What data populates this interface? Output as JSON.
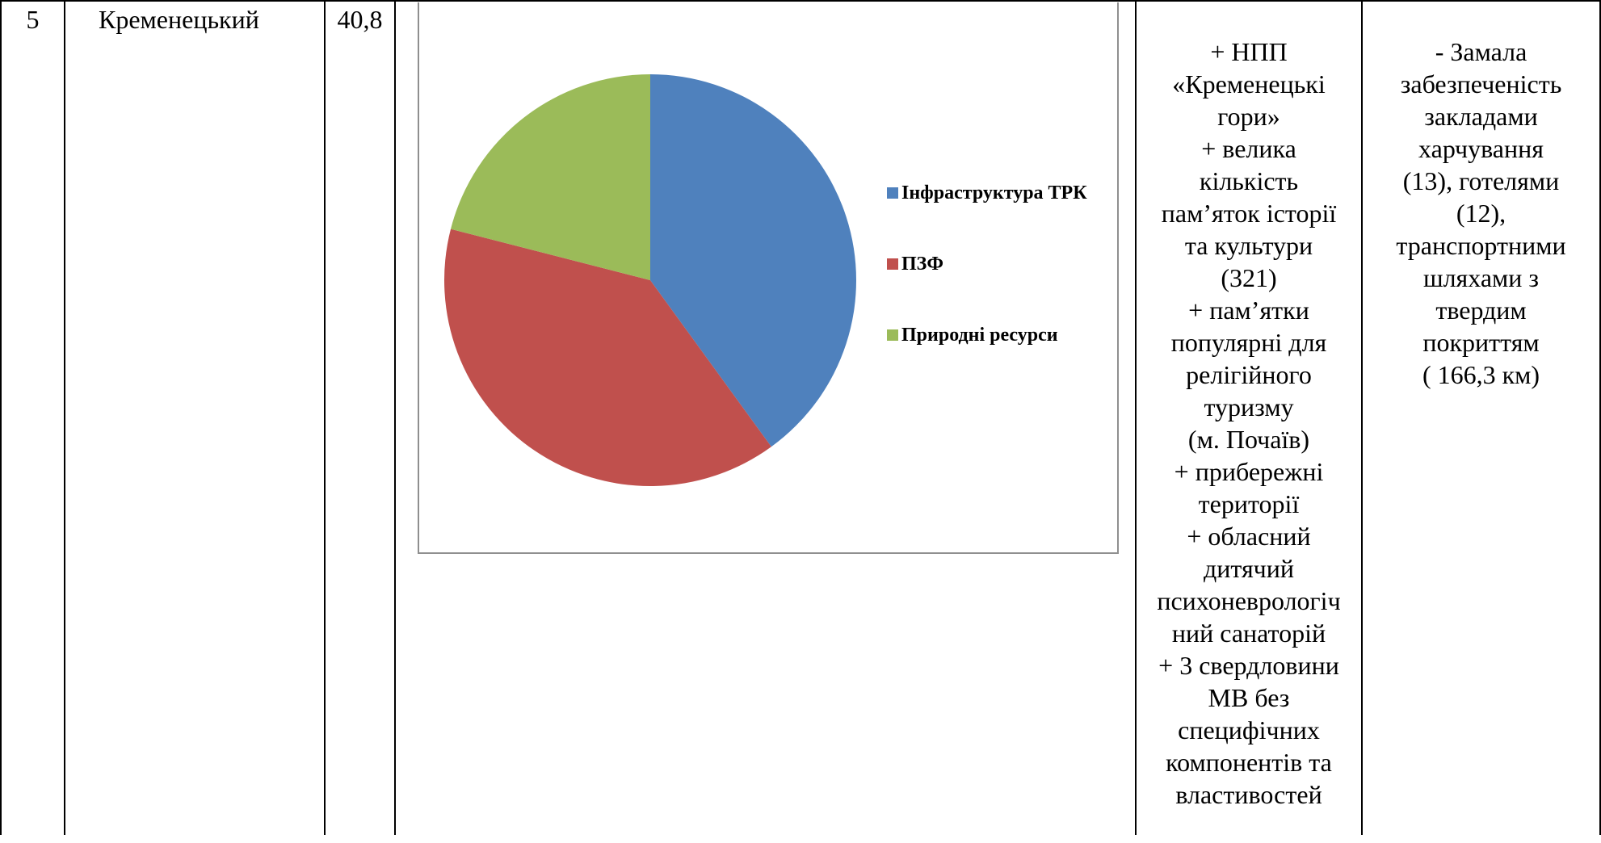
{
  "row": {
    "number": "5",
    "district": "Кременецький",
    "value": "40,8",
    "strengths_lines": [
      "+ НПП",
      "«Кременецькі",
      "гори»",
      "+ велика",
      "кількість",
      "пам’яток історії",
      "та культури",
      "(321)",
      "+ пам’ятки",
      "популярні для",
      "релігійного",
      "туризму",
      "(м. Почаїв)",
      "+ прибережні",
      "території",
      "+ обласний",
      "дитячий",
      "психоневрологіч",
      "ний санаторій",
      "+ 3 свердловини",
      "МВ без",
      "специфічних",
      "компонентів та",
      "властивостей"
    ],
    "weaknesses_lines": [
      "- Замала",
      "забезпеченість",
      "закладами",
      "харчування",
      "(13), готелями",
      "(12),",
      "транспортними",
      "шляхами з",
      "твердим",
      "покриттям",
      "( 166,3 км)"
    ]
  },
  "chart_data": {
    "type": "pie",
    "title": "",
    "start_angle_deg": 0,
    "direction": "clockwise",
    "legend_position": "right",
    "slices": [
      {
        "label": "Інфраструктура ТРК",
        "value": 40,
        "color": "#4F81BD"
      },
      {
        "label": "ПЗФ",
        "value": 39,
        "color": "#C0504D"
      },
      {
        "label": "Природні ресурси",
        "value": 21,
        "color": "#9BBB59"
      }
    ]
  }
}
